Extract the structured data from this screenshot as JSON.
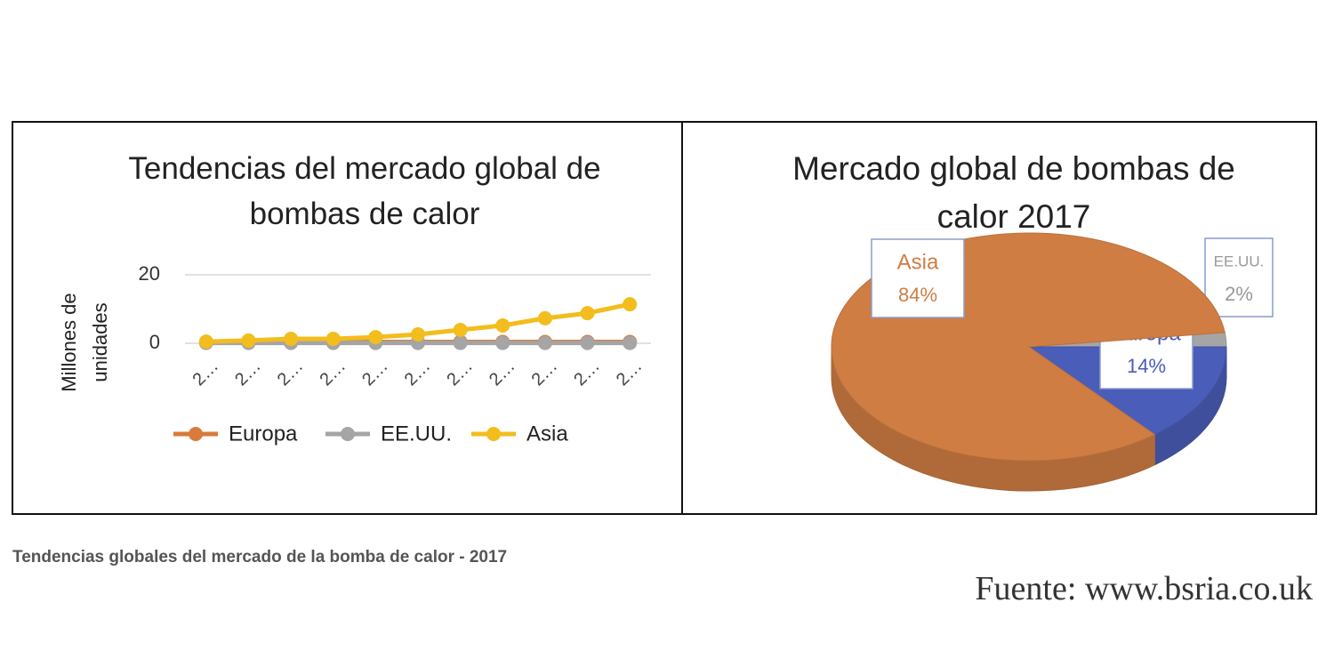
{
  "chart_data": [
    {
      "type": "line",
      "title": "Tendencias del mercado global de bombas de calor",
      "y_label": "Millones de unidades",
      "categories": [
        "2…",
        "2…",
        "2…",
        "2…",
        "2…",
        "2…",
        "2…",
        "2…",
        "2…",
        "2…",
        "2…"
      ],
      "series": [
        {
          "name": "Europa",
          "color": "#d97b3a",
          "values": [
            0.3,
            0.3,
            0.3,
            0.3,
            0.4,
            0.4,
            0.4,
            0.4,
            0.4,
            0.4,
            0.4
          ]
        },
        {
          "name": "EE.UU.",
          "color": "#a5a5a5",
          "values": [
            0.1,
            0.1,
            0.1,
            0.1,
            0.1,
            0.1,
            0.1,
            0.1,
            0.1,
            0.1,
            0.1
          ]
        },
        {
          "name": "Asia",
          "color": "#f2bd1d",
          "values": [
            0.5,
            0.8,
            1.3,
            1.3,
            1.8,
            2.6,
            3.9,
            5.2,
            7.3,
            8.8,
            11.4
          ]
        }
      ],
      "ylim": [
        0,
        20
      ],
      "yticks": [
        0,
        20
      ],
      "grid": true,
      "legend": "bottom"
    },
    {
      "type": "pie",
      "title": "Mercado global de bombas de calor 2017",
      "categories": [
        "EE.UU.",
        "Europa",
        "Asia"
      ],
      "values": [
        2,
        14,
        84
      ],
      "value_labels": [
        "2%",
        "14%",
        "84%"
      ],
      "colors": [
        "#a5a5a5",
        "#4a5db8",
        "#cf7d43"
      ]
    }
  ],
  "caption": "Tendencias globales del mercado de la bomba de calor - 2017",
  "source": "Fuente: www.bsria.co.uk"
}
